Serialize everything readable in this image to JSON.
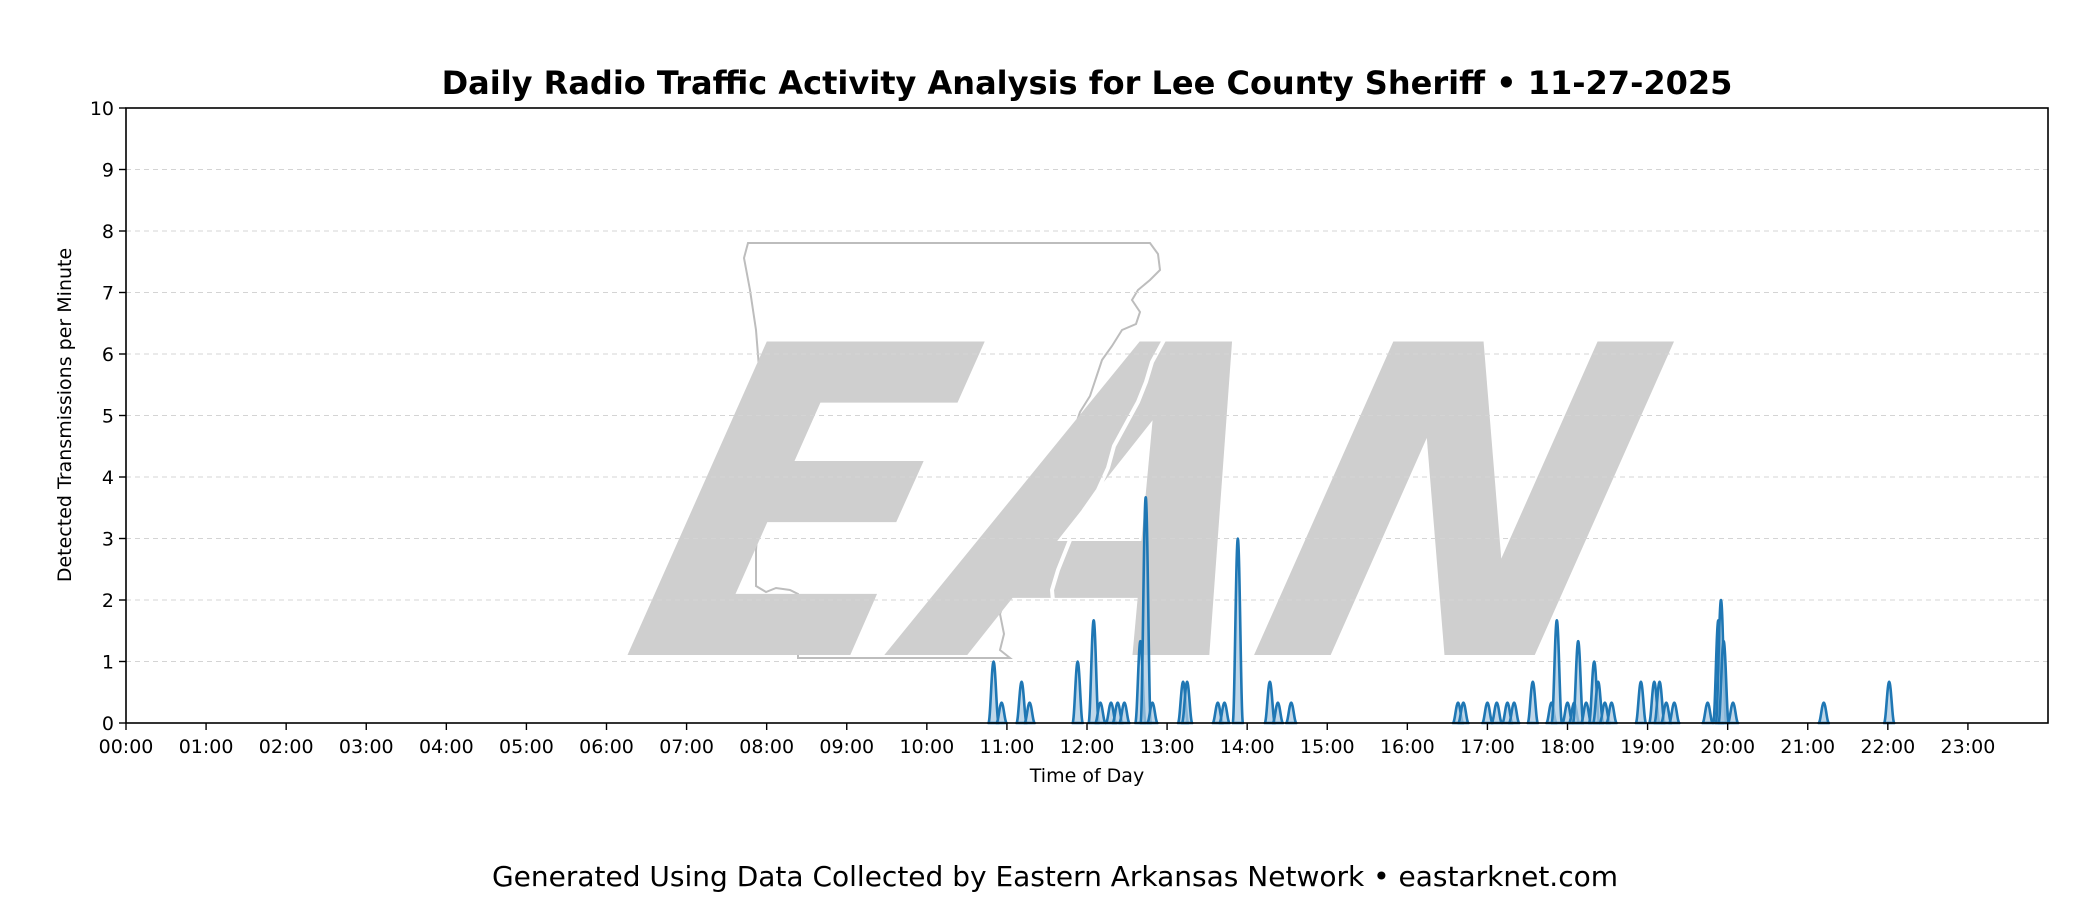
{
  "chart_data": {
    "type": "area",
    "title": "Daily Radio Traffic Activity Analysis for Lee County Sheriff • 11-27-2025",
    "xlabel": "Time of Day",
    "ylabel": "Detected Transmissions per Minute",
    "x_ticks": [
      "00:00",
      "01:00",
      "02:00",
      "03:00",
      "04:00",
      "05:00",
      "06:00",
      "07:00",
      "08:00",
      "09:00",
      "10:00",
      "11:00",
      "12:00",
      "13:00",
      "14:00",
      "15:00",
      "16:00",
      "17:00",
      "18:00",
      "19:00",
      "20:00",
      "21:00",
      "22:00",
      "23:00"
    ],
    "y_ticks": [
      0,
      1,
      2,
      3,
      4,
      5,
      6,
      7,
      8,
      9,
      10
    ],
    "xlim_minutes": [
      0,
      1440
    ],
    "ylim": [
      0,
      10
    ],
    "grid": "horizontal dashed",
    "series": [
      {
        "color": "#1f77b4",
        "fill": "#a9c9e2",
        "points": [
          {
            "t": "10:50",
            "v": 1.0
          },
          {
            "t": "10:56",
            "v": 0.33
          },
          {
            "t": "11:11",
            "v": 0.67
          },
          {
            "t": "11:17",
            "v": 0.33
          },
          {
            "t": "11:53",
            "v": 1.0
          },
          {
            "t": "12:05",
            "v": 1.67
          },
          {
            "t": "12:10",
            "v": 0.33
          },
          {
            "t": "12:18",
            "v": 0.33
          },
          {
            "t": "12:23",
            "v": 0.33
          },
          {
            "t": "12:28",
            "v": 0.33
          },
          {
            "t": "12:40",
            "v": 1.33
          },
          {
            "t": "12:44",
            "v": 3.67
          },
          {
            "t": "12:49",
            "v": 0.33
          },
          {
            "t": "13:12",
            "v": 0.67
          },
          {
            "t": "13:15",
            "v": 0.67
          },
          {
            "t": "13:38",
            "v": 0.33
          },
          {
            "t": "13:43",
            "v": 0.33
          },
          {
            "t": "13:53",
            "v": 3.0
          },
          {
            "t": "14:17",
            "v": 0.67
          },
          {
            "t": "14:23",
            "v": 0.33
          },
          {
            "t": "14:33",
            "v": 0.33
          },
          {
            "t": "16:38",
            "v": 0.33
          },
          {
            "t": "16:42",
            "v": 0.33
          },
          {
            "t": "17:00",
            "v": 0.33
          },
          {
            "t": "17:07",
            "v": 0.33
          },
          {
            "t": "17:15",
            "v": 0.33
          },
          {
            "t": "17:20",
            "v": 0.33
          },
          {
            "t": "17:34",
            "v": 0.67
          },
          {
            "t": "17:48",
            "v": 0.33
          },
          {
            "t": "17:52",
            "v": 1.67
          },
          {
            "t": "18:00",
            "v": 0.33
          },
          {
            "t": "18:05",
            "v": 0.33
          },
          {
            "t": "18:08",
            "v": 1.33
          },
          {
            "t": "18:14",
            "v": 0.33
          },
          {
            "t": "18:20",
            "v": 1.0
          },
          {
            "t": "18:23",
            "v": 0.67
          },
          {
            "t": "18:28",
            "v": 0.33
          },
          {
            "t": "18:33",
            "v": 0.33
          },
          {
            "t": "18:55",
            "v": 0.67
          },
          {
            "t": "19:05",
            "v": 0.67
          },
          {
            "t": "19:09",
            "v": 0.67
          },
          {
            "t": "19:14",
            "v": 0.33
          },
          {
            "t": "19:20",
            "v": 0.33
          },
          {
            "t": "19:45",
            "v": 0.33
          },
          {
            "t": "19:53",
            "v": 1.67
          },
          {
            "t": "19:55",
            "v": 2.0
          },
          {
            "t": "19:57",
            "v": 1.33
          },
          {
            "t": "20:04",
            "v": 0.33
          },
          {
            "t": "21:12",
            "v": 0.33
          },
          {
            "t": "22:01",
            "v": 0.67
          }
        ]
      }
    ]
  },
  "footer": "Generated Using Data Collected by Eastern Arkansas Network • eastarknet.com",
  "watermark": {
    "text": "EAN",
    "icon": "arkansas-state-outline-icon"
  }
}
